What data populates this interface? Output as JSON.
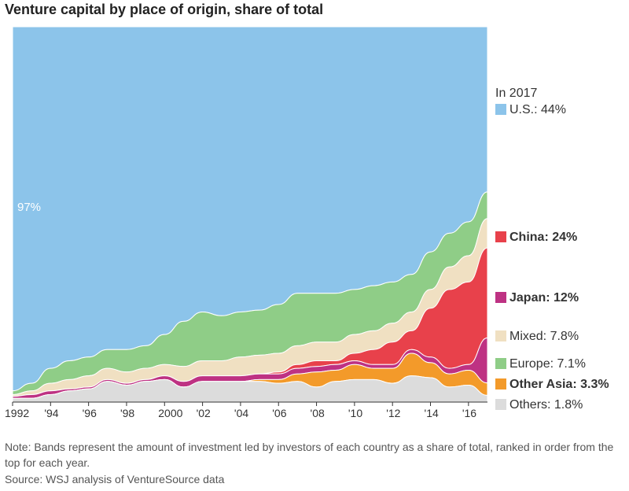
{
  "title": "Venture capital by place of origin, share of total",
  "note": "Note: Bands represent the amount of investment led by investors of each country as a share of total, ranked in order from the top for each year.",
  "source": "Source: WSJ analysis of VentureSource data",
  "annotation_us_1992": "97%",
  "legend_head": "In 2017",
  "legend": [
    {
      "label": "U.S.: 44%",
      "bold": false,
      "color": "#8cc4ea"
    },
    {
      "label": "China: 24%",
      "bold": true,
      "color": "#e8414b"
    },
    {
      "label": "Japan: 12%",
      "bold": true,
      "color": "#be3283"
    },
    {
      "label": "Mixed: 7.8%",
      "bold": false,
      "color": "#f0e0c2"
    },
    {
      "label": "Europe: 7.1%",
      "bold": false,
      "color": "#8fcd87"
    },
    {
      "label": "Other Asia: 3.3%",
      "bold": true,
      "color": "#f39a2a"
    },
    {
      "label": "Others: 1.8%",
      "bold": false,
      "color": "#dcdcdc"
    }
  ],
  "chart_data": {
    "type": "area",
    "x": [
      1992,
      1993,
      1994,
      1995,
      1996,
      1997,
      1998,
      1999,
      2000,
      2001,
      2002,
      2003,
      2004,
      2005,
      2006,
      2007,
      2008,
      2009,
      2010,
      2011,
      2012,
      2013,
      2014,
      2015,
      2016,
      2017
    ],
    "x_tick_labels": [
      "1992",
      "'94",
      "'96",
      "'98",
      "2000",
      "'02",
      "'04",
      "'06",
      "'08",
      "'10",
      "'12",
      "'14",
      "'16"
    ],
    "ylim": [
      0,
      100
    ],
    "grid": false,
    "legend_position": "right",
    "series": [
      {
        "name": "U.S.",
        "color": "#8cc4ea",
        "values": [
          97,
          95,
          91,
          89,
          88,
          86,
          86,
          85,
          82,
          77,
          76,
          77,
          76,
          76,
          74,
          71,
          71,
          71,
          70,
          69,
          68,
          66,
          60,
          55,
          52,
          44
        ]
      },
      {
        "name": "Europe",
        "color": "#8fcd87",
        "values": [
          1,
          2,
          4,
          5,
          5,
          5,
          6,
          6,
          8,
          12,
          13,
          12,
          12,
          12,
          13,
          14,
          13,
          13,
          12,
          12,
          11,
          10,
          10,
          9,
          9,
          7.1
        ]
      },
      {
        "name": "Mixed",
        "color": "#f0e0c2",
        "values": [
          0.5,
          1,
          2,
          2.5,
          3,
          3,
          3,
          3,
          3,
          4,
          4,
          4,
          5,
          5,
          5,
          5,
          5,
          5,
          5,
          5,
          5,
          5,
          5,
          6,
          7,
          7.8
        ]
      },
      {
        "name": "China",
        "color": "#e8414b",
        "values": [
          0,
          0,
          0,
          0,
          0,
          0,
          0,
          0,
          0,
          0,
          0,
          0,
          0,
          0,
          0.5,
          1,
          1.5,
          1,
          2,
          4,
          6,
          5,
          13,
          21,
          22,
          24
        ]
      },
      {
        "name": "Japan",
        "color": "#be3283",
        "values": [
          0.5,
          1,
          1,
          0.5,
          0.5,
          0.5,
          0.5,
          0.5,
          1,
          1.5,
          1.5,
          1.5,
          1.5,
          1.5,
          1.5,
          1.5,
          1.5,
          1.5,
          1,
          1,
          1,
          1,
          1.5,
          1.5,
          1.5,
          12
        ]
      },
      {
        "name": "Other Asia",
        "color": "#f39a2a",
        "values": [
          0,
          0,
          0,
          0,
          0,
          0,
          0,
          0,
          0,
          0,
          0,
          0,
          0,
          0.5,
          1,
          2,
          4,
          3,
          4,
          3,
          4,
          6,
          4,
          3.5,
          4,
          3.3
        ]
      },
      {
        "name": "Others",
        "color": "#dcdcdc",
        "values": [
          1,
          1,
          2,
          3,
          3.5,
          5.5,
          4.5,
          5.5,
          6,
          4,
          5.5,
          5.5,
          5.5,
          5.5,
          5,
          5.5,
          4,
          5.5,
          6,
          6,
          5,
          7,
          6.5,
          4,
          4.5,
          1.8
        ]
      }
    ]
  }
}
